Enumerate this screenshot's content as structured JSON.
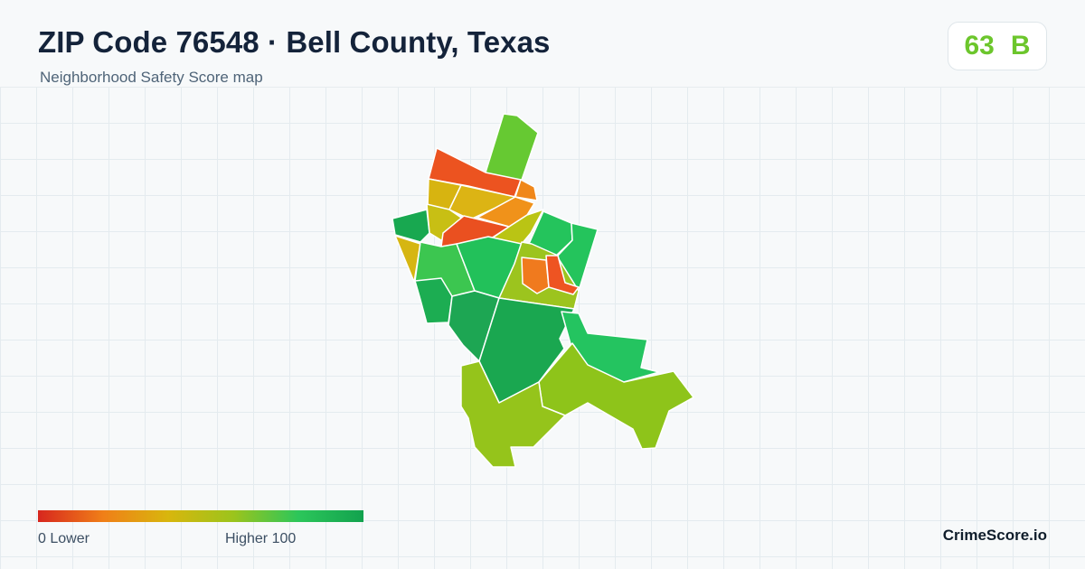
{
  "header": {
    "title": "ZIP Code 76548 · Bell County, Texas",
    "subtitle": "Neighborhood Safety Score map"
  },
  "score": {
    "value": "63",
    "grade": "B",
    "color": "#6cc62c"
  },
  "legend": {
    "min_label": "0  Lower",
    "max_label": "Higher  100",
    "min_value": 0,
    "max_value": 100,
    "colors": [
      "#d7261e",
      "#f07f18",
      "#d8b60d",
      "#9cc41c",
      "#2cc65a",
      "#12a24e"
    ]
  },
  "brand": "CrimeScore.io",
  "map": {
    "regions": [
      {
        "name": "north-strip",
        "color": "#66c932"
      },
      {
        "name": "north-red",
        "color": "#ec5320"
      },
      {
        "name": "north-small-orange",
        "color": "#f0871a"
      },
      {
        "name": "north-yellow-west",
        "color": "#d7b410"
      },
      {
        "name": "north-yellow-mid",
        "color": "#dcb414"
      },
      {
        "name": "north-orange-east",
        "color": "#f0921a"
      },
      {
        "name": "west-green-nw",
        "color": "#18a850"
      },
      {
        "name": "west-yellow-mid",
        "color": "#c8bf14"
      },
      {
        "name": "central-red",
        "color": "#ea5020"
      },
      {
        "name": "central-yellowgreen",
        "color": "#bac414"
      },
      {
        "name": "west-yellow-strip",
        "color": "#d6b612"
      },
      {
        "name": "west-green",
        "color": "#3cc650"
      },
      {
        "name": "central-green",
        "color": "#22c15a"
      },
      {
        "name": "east-green-north",
        "color": "#24c45c"
      },
      {
        "name": "east-green-strip",
        "color": "#24c45c"
      },
      {
        "name": "east-limegreen",
        "color": "#9cc41e"
      },
      {
        "name": "east-orange",
        "color": "#f07a1e"
      },
      {
        "name": "east-red",
        "color": "#ee5422"
      },
      {
        "name": "southwest-strip",
        "color": "#1cad52"
      },
      {
        "name": "south-center-green",
        "color": "#1da653"
      },
      {
        "name": "south-central",
        "color": "#1aa750"
      },
      {
        "name": "east-lower-green",
        "color": "#24c460"
      },
      {
        "name": "southeast",
        "color": "#8ec41a"
      },
      {
        "name": "south-lobe",
        "color": "#95c41b"
      }
    ]
  }
}
